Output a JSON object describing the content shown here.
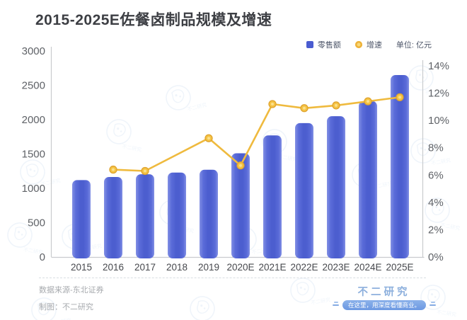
{
  "title": "2015-2025E佐餐卤制品规模及增速",
  "legend": {
    "bar_label": "零售额",
    "line_label": "增速",
    "unit_label": "单位: 亿元"
  },
  "chart_data": {
    "type": "bar",
    "subtype": "combo-bar-line",
    "title": "2015-2025E佐餐卤制品规模及增速",
    "categories": [
      "2015",
      "2016",
      "2017",
      "2018",
      "2019",
      "2020E",
      "2021E",
      "2022E",
      "2023E",
      "2024E",
      "2025E"
    ],
    "series": [
      {
        "name": "零售额",
        "type": "bar",
        "axis": "left",
        "unit": "亿元",
        "values": [
          1120,
          1165,
          1205,
          1230,
          1270,
          1510,
          1770,
          1950,
          2050,
          2270,
          2650
        ]
      },
      {
        "name": "增速",
        "type": "line",
        "axis": "right",
        "unit": "%",
        "values": [
          null,
          6.4,
          6.3,
          null,
          8.7,
          6.7,
          11.2,
          10.9,
          11.1,
          11.4,
          11.7
        ]
      }
    ],
    "left_axis": {
      "min": 0,
      "max": 3000,
      "step": 500,
      "ticks": [
        "0",
        "500",
        "1000",
        "1500",
        "2000",
        "2500",
        "3000"
      ]
    },
    "right_axis": {
      "min": 0,
      "max": 14,
      "step": 2,
      "ticks": [
        "0%",
        "2%",
        "4%",
        "6%",
        "8%",
        "10%",
        "12%",
        "14%"
      ]
    },
    "grid": false,
    "legend_position": "top-right",
    "unit_note": "单位: 亿元"
  },
  "colors": {
    "bar_center": "#4c5ecf",
    "bar_mid": "#5b6cd9",
    "bar_edge": "#8290e4",
    "line": "#efba3e",
    "marker_fill": "#f5c344",
    "marker_stroke": "#dfa32e",
    "marker_inner": "#fbe08a",
    "axis_line": "#c9cbce",
    "tick_text": "#5f6267",
    "category_text": "#46484d",
    "watermark": "#9fc2e6"
  },
  "footer": {
    "source": "数据来源-东北证券",
    "credit": "制图：不二研究"
  },
  "branding": {
    "name": "不二研究",
    "slogan": "在这里，用深度看懂商业。"
  }
}
